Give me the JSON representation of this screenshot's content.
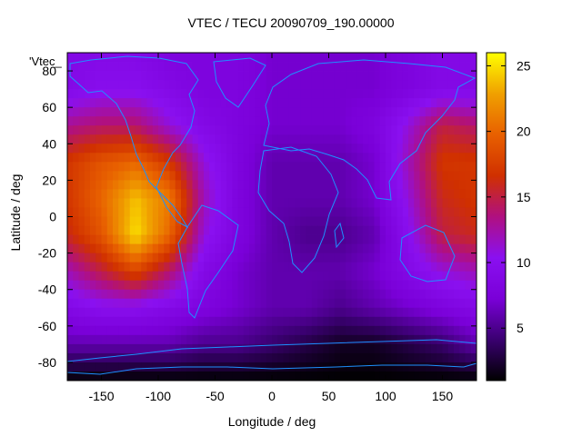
{
  "chart_data": {
    "type": "heatmap",
    "title": "VTEC / TECU 20090709_190.00000",
    "xlabel": "Longitude / deg",
    "ylabel": "Latitude / deg",
    "legend_key": "'Vtec_",
    "xlim": [
      -180,
      180
    ],
    "ylim": [
      -90,
      90
    ],
    "xticks": [
      -150,
      -100,
      -50,
      0,
      50,
      100,
      150
    ],
    "yticks": [
      -80,
      -60,
      -40,
      -20,
      0,
      20,
      40,
      60,
      80
    ],
    "colorbar": {
      "range": [
        1,
        26
      ],
      "ticks": [
        5,
        10,
        15,
        20,
        25
      ]
    },
    "coastline_color": "#1e90ff",
    "palette": [
      "#000000",
      "#3a0070",
      "#7a00d8",
      "#8a10f0",
      "#b01080",
      "#d03000",
      "#e86000",
      "#f0a000",
      "#ffff00"
    ],
    "field": {
      "lons": [
        -180,
        -150,
        -120,
        -90,
        -60,
        -30,
        0,
        30,
        60,
        90,
        120,
        150,
        180
      ],
      "lats": [
        90,
        70,
        50,
        30,
        10,
        -10,
        -30,
        -50,
        -70,
        -90
      ],
      "values": [
        [
          9,
          9,
          9,
          8,
          8,
          8,
          7,
          7,
          7,
          7,
          8,
          9,
          9
        ],
        [
          9,
          10,
          10,
          9,
          8,
          8,
          7,
          7,
          7,
          7,
          8,
          9,
          9
        ],
        [
          13,
          14,
          14,
          11,
          9,
          8,
          7,
          7,
          7,
          8,
          11,
          15,
          14
        ],
        [
          17,
          19,
          20,
          17,
          11,
          8,
          6,
          6,
          6,
          7,
          12,
          17,
          17
        ],
        [
          17,
          20,
          24,
          21,
          12,
          8,
          6,
          6,
          6,
          7,
          11,
          16,
          17
        ],
        [
          16,
          19,
          25,
          20,
          11,
          8,
          6,
          5,
          5,
          6,
          10,
          15,
          16
        ],
        [
          12,
          15,
          18,
          14,
          9,
          7,
          6,
          6,
          6,
          7,
          9,
          11,
          12
        ],
        [
          9,
          10,
          10,
          9,
          8,
          7,
          6,
          6,
          5,
          6,
          7,
          8,
          9
        ],
        [
          6,
          6,
          6,
          6,
          5,
          5,
          4,
          3,
          2,
          2,
          3,
          4,
          6
        ],
        [
          1,
          1,
          1,
          1,
          1,
          1,
          1,
          1,
          1,
          1,
          1,
          1,
          1
        ]
      ]
    }
  }
}
